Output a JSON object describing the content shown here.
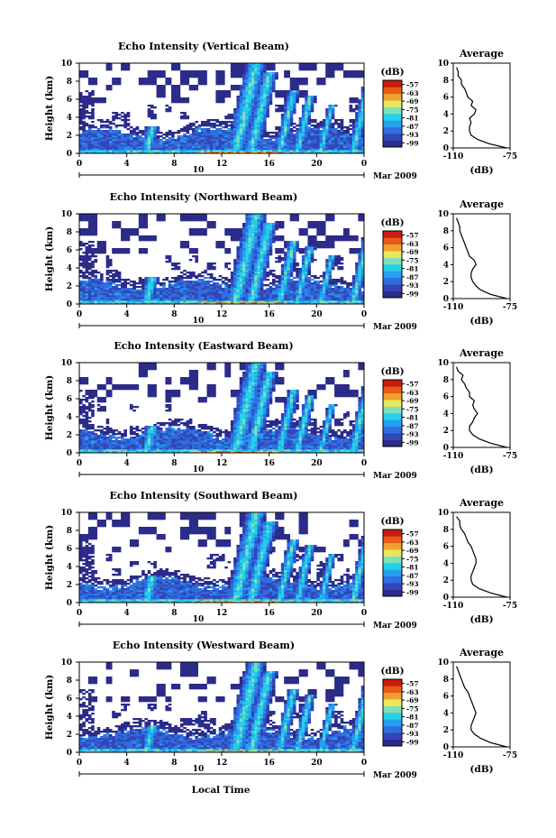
{
  "figure": {
    "date_label": "Mar 2009",
    "xlabel": "Local Time",
    "colors": {
      "cmap": [
        "#2b2b8a",
        "#3346b8",
        "#2f6ee0",
        "#23a0f0",
        "#25d0e8",
        "#7fe0b8",
        "#e8e85a",
        "#f0a030",
        "#e85a18",
        "#c81e0e"
      ],
      "no_data": "#ffffff",
      "profile_line": "#000000"
    }
  },
  "chart_data": [
    {
      "type": "heatmap",
      "title": "Echo Intensity (Vertical Beam)",
      "xlabel": "",
      "ylabel": "Height (km)",
      "xlim": [
        0,
        24
      ],
      "ylim": [
        0,
        10
      ],
      "xticks": [
        "0",
        "4",
        "8",
        "12",
        "16",
        "20",
        "0"
      ],
      "yticks": [
        "0",
        "2",
        "4",
        "6",
        "8",
        "10"
      ],
      "day_label": "10",
      "colorbar": {
        "label": "(dB)",
        "ticks": [
          "-57",
          "-63",
          "-69",
          "-75",
          "-81",
          "-87",
          "-93",
          "-99"
        ],
        "range": [
          -102,
          -54
        ]
      },
      "profile": {
        "title": "Average",
        "xlabel": "(dB)",
        "xticks": [
          "-110",
          "-75"
        ],
        "xlim": [
          -110,
          -75
        ],
        "heights": [
          0,
          0.5,
          1,
          1.5,
          2,
          2.5,
          3,
          3.5,
          4,
          4.5,
          5,
          5.5,
          6,
          6.5,
          7,
          7.5,
          8,
          8.5,
          9,
          9.5
        ],
        "values": [
          -77,
          -88,
          -95,
          -99,
          -100,
          -100,
          -99,
          -100,
          -97,
          -96,
          -99,
          -98,
          -101,
          -102,
          -103,
          -105,
          -105,
          -107,
          -107,
          -108
        ]
      }
    },
    {
      "type": "heatmap",
      "title": "Echo Intensity (Northward Beam)",
      "xlabel": "",
      "ylabel": "Height (km)",
      "xlim": [
        0,
        24
      ],
      "ylim": [
        0,
        10
      ],
      "xticks": [
        "0",
        "4",
        "8",
        "12",
        "16",
        "20",
        "0"
      ],
      "yticks": [
        "0",
        "2",
        "4",
        "6",
        "8",
        "10"
      ],
      "day_label": "10",
      "colorbar": {
        "label": "(dB)",
        "ticks": [
          "-57",
          "-63",
          "-69",
          "-75",
          "-81",
          "-87",
          "-93",
          "-99"
        ],
        "range": [
          -102,
          -54
        ]
      },
      "profile": {
        "title": "Average",
        "xlabel": "(dB)",
        "xticks": [
          "-110",
          "-75"
        ],
        "xlim": [
          -110,
          -75
        ],
        "heights": [
          0,
          0.5,
          1,
          1.5,
          2,
          2.5,
          3,
          3.5,
          4,
          4.5,
          5,
          5.5,
          6,
          6.5,
          7,
          7.5,
          8,
          8.5,
          9,
          9.5
        ],
        "values": [
          -77,
          -87,
          -93,
          -96,
          -98,
          -99,
          -99,
          -98,
          -96,
          -97,
          -100,
          -101,
          -102,
          -103,
          -104,
          -105,
          -106,
          -106,
          -107,
          -108
        ]
      }
    },
    {
      "type": "heatmap",
      "title": "Echo Intensity (Eastward Beam)",
      "xlabel": "",
      "ylabel": "Height (km)",
      "xlim": [
        0,
        24
      ],
      "ylim": [
        0,
        10
      ],
      "xticks": [
        "0",
        "4",
        "8",
        "12",
        "16",
        "20",
        "0"
      ],
      "yticks": [
        "0",
        "2",
        "4",
        "6",
        "8",
        "10"
      ],
      "day_label": "10",
      "colorbar": {
        "label": "(dB)",
        "ticks": [
          "-57",
          "-63",
          "-69",
          "-75",
          "-81",
          "-87",
          "-93",
          "-99"
        ],
        "range": [
          -102,
          -54
        ]
      },
      "profile": {
        "title": "Average",
        "xlabel": "(dB)",
        "xticks": [
          "-110",
          "-75"
        ],
        "xlim": [
          -110,
          -75
        ],
        "heights": [
          0,
          0.5,
          1,
          1.5,
          2,
          2.5,
          3,
          3.5,
          4,
          4.5,
          5,
          5.5,
          6,
          6.5,
          7,
          7.5,
          8,
          8.5,
          9,
          9.5
        ],
        "values": [
          -77,
          -87,
          -94,
          -98,
          -100,
          -100,
          -98,
          -97,
          -95,
          -97,
          -98,
          -97,
          -100,
          -100,
          -102,
          -103,
          -105,
          -104,
          -107,
          -108
        ]
      }
    },
    {
      "type": "heatmap",
      "title": "Echo Intensity (Southward Beam)",
      "xlabel": "",
      "ylabel": "Height (km)",
      "xlim": [
        0,
        24
      ],
      "ylim": [
        0,
        10
      ],
      "xticks": [
        "0",
        "4",
        "8",
        "12",
        "16",
        "20",
        "0"
      ],
      "yticks": [
        "0",
        "2",
        "4",
        "6",
        "8",
        "10"
      ],
      "day_label": "10",
      "colorbar": {
        "label": "(dB)",
        "ticks": [
          "-57",
          "-63",
          "-69",
          "-75",
          "-81",
          "-87",
          "-93",
          "-99"
        ],
        "range": [
          -102,
          -54
        ]
      },
      "profile": {
        "title": "Average",
        "xlabel": "(dB)",
        "xticks": [
          "-110",
          "-75"
        ],
        "xlim": [
          -110,
          -75
        ],
        "heights": [
          0,
          0.5,
          1,
          1.5,
          2,
          2.5,
          3,
          3.5,
          4,
          4.5,
          5,
          5.5,
          6,
          6.5,
          7,
          7.5,
          8,
          8.5,
          9,
          9.5
        ],
        "values": [
          -77,
          -87,
          -94,
          -98,
          -99,
          -99,
          -98,
          -97,
          -96,
          -96,
          -97,
          -98,
          -99,
          -101,
          -102,
          -103,
          -105,
          -106,
          -106,
          -108
        ]
      }
    },
    {
      "type": "heatmap",
      "title": "Echo Intensity (Westward Beam)",
      "xlabel": "Local Time",
      "ylabel": "Height (km)",
      "xlim": [
        0,
        24
      ],
      "ylim": [
        0,
        10
      ],
      "xticks": [
        "0",
        "4",
        "8",
        "12",
        "16",
        "20",
        "0"
      ],
      "yticks": [
        "0",
        "2",
        "4",
        "6",
        "8",
        "10"
      ],
      "day_label": "10",
      "colorbar": {
        "label": "(dB)",
        "ticks": [
          "-57",
          "-63",
          "-69",
          "-75",
          "-81",
          "-87",
          "-93",
          "-99"
        ],
        "range": [
          -102,
          -54
        ]
      },
      "profile": {
        "title": "Average",
        "xlabel": "(dB)",
        "xticks": [
          "-110",
          "-75"
        ],
        "xlim": [
          -110,
          -75
        ],
        "heights": [
          0,
          0.5,
          1,
          1.5,
          2,
          2.5,
          3,
          3.5,
          4,
          4.5,
          5,
          5.5,
          6,
          6.5,
          7,
          7.5,
          8,
          8.5,
          9,
          9.5
        ],
        "values": [
          -77,
          -87,
          -93,
          -97,
          -99,
          -99,
          -98,
          -97,
          -96,
          -97,
          -98,
          -99,
          -100,
          -101,
          -103,
          -104,
          -105,
          -106,
          -107,
          -108
        ]
      }
    }
  ]
}
